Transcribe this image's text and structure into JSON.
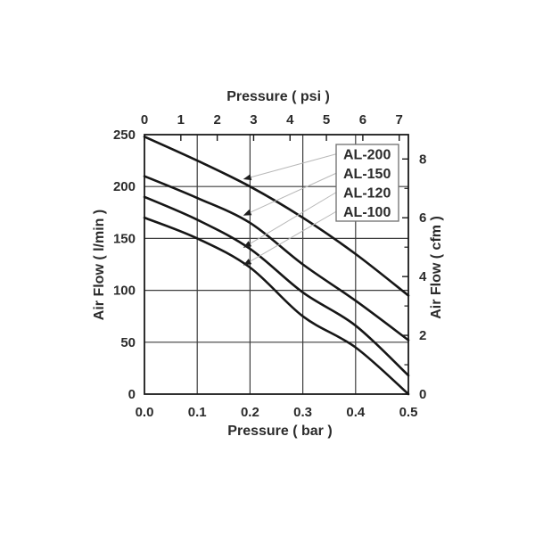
{
  "chart_data": {
    "type": "line",
    "title": "",
    "x": [
      0.0,
      0.1,
      0.2,
      0.3,
      0.4,
      0.5
    ],
    "series": [
      {
        "name": "AL-200",
        "values": [
          248,
          225,
          200,
          170,
          135,
          95
        ]
      },
      {
        "name": "AL-150",
        "values": [
          210,
          189,
          165,
          125,
          90,
          52
        ]
      },
      {
        "name": "AL-120",
        "values": [
          190,
          168,
          140,
          98,
          66,
          18
        ]
      },
      {
        "name": "AL-100",
        "values": [
          170,
          150,
          122,
          75,
          45,
          0
        ]
      }
    ],
    "axes": {
      "bottom": {
        "label": "Pressure ( bar )",
        "tick_labels": [
          "0.0",
          "0.1",
          "0.2",
          "0.3",
          "0.4",
          "0.5"
        ],
        "tick_values": [
          0.0,
          0.1,
          0.2,
          0.3,
          0.4,
          0.5
        ],
        "range": [
          0.0,
          0.5
        ]
      },
      "top": {
        "label": "Pressure ( psi )",
        "tick_labels": [
          "0",
          "1",
          "2",
          "3",
          "4",
          "5",
          "6",
          "7"
        ],
        "tick_values": [
          0,
          1,
          2,
          3,
          4,
          5,
          6,
          7
        ],
        "unit": "psi"
      },
      "left": {
        "label": "Air Flow ( l/min )",
        "tick_labels": [
          "250",
          "200",
          "150",
          "100",
          "50",
          "0"
        ],
        "tick_values": [
          250,
          200,
          150,
          100,
          50,
          0
        ],
        "range": [
          0,
          250
        ]
      },
      "right": {
        "label": "Air Flow ( cfm )",
        "tick_labels": [
          "8",
          "6",
          "4",
          "2",
          "0"
        ],
        "tick_values": [
          8,
          6,
          4,
          2,
          0
        ],
        "minor_tick_values": [
          1,
          3,
          5,
          7
        ],
        "unit": "cfm"
      }
    },
    "grid": true,
    "legend": {
      "position": "top-right",
      "items": [
        "AL-200",
        "AL-150",
        "AL-120",
        "AL-100"
      ]
    },
    "annotations": {
      "leader_arrows": [
        {
          "label": "AL-200",
          "target_bar": 0.187,
          "target_lmin": 207
        },
        {
          "label": "AL-150",
          "target_bar": 0.187,
          "target_lmin": 172
        },
        {
          "label": "AL-120",
          "target_bar": 0.187,
          "target_lmin": 141
        },
        {
          "label": "AL-100",
          "target_bar": 0.187,
          "target_lmin": 124
        }
      ]
    }
  },
  "colors": {
    "background": "#ffffff",
    "curve": "#161616",
    "grid": "#3d3d3d",
    "frame": "#1a1a1a",
    "tick": "#1a1a1a",
    "text": "#2b2b2b",
    "leader_line": "#b8b8b8",
    "arrow": "#1f1f1f",
    "legend_border": "#6e6e6e",
    "legend_fill": "#ffffff"
  }
}
